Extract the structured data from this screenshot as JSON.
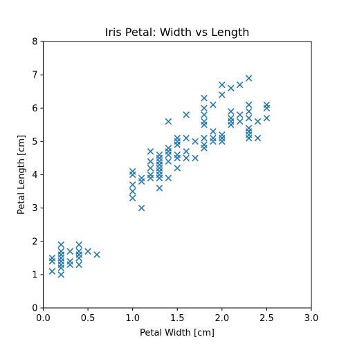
{
  "chart_data": {
    "type": "scatter",
    "title": "Iris Petal: Width vs Length",
    "xlabel": "Petal Width [cm]",
    "ylabel": "Petal Length [cm]",
    "xlim": [
      0.0,
      3.0
    ],
    "ylim": [
      0,
      8
    ],
    "xticks": [
      "0.0",
      "0.5",
      "1.0",
      "1.5",
      "2.0",
      "2.5",
      "3.0"
    ],
    "yticks": [
      "0",
      "1",
      "2",
      "3",
      "4",
      "5",
      "6",
      "7",
      "8"
    ],
    "grid": false,
    "marker": "x",
    "color": "#1f77b4",
    "series": [
      {
        "points": [
          [
            0.1,
            1.5
          ],
          [
            0.1,
            1.4
          ],
          [
            0.1,
            1.1
          ],
          [
            0.2,
            1.9
          ],
          [
            0.2,
            1.7
          ],
          [
            0.2,
            1.6
          ],
          [
            0.2,
            1.5
          ],
          [
            0.2,
            1.4
          ],
          [
            0.2,
            1.3
          ],
          [
            0.2,
            1.2
          ],
          [
            0.2,
            1.0
          ],
          [
            0.3,
            1.7
          ],
          [
            0.3,
            1.4
          ],
          [
            0.3,
            1.3
          ],
          [
            0.4,
            1.9
          ],
          [
            0.4,
            1.7
          ],
          [
            0.4,
            1.6
          ],
          [
            0.4,
            1.5
          ],
          [
            0.4,
            1.3
          ],
          [
            0.5,
            1.7
          ],
          [
            0.6,
            1.6
          ],
          [
            1.0,
            4.1
          ],
          [
            1.0,
            4.0
          ],
          [
            1.0,
            3.7
          ],
          [
            1.0,
            3.5
          ],
          [
            1.0,
            3.3
          ],
          [
            1.1,
            3.9
          ],
          [
            1.1,
            3.8
          ],
          [
            1.1,
            3.0
          ],
          [
            1.2,
            4.7
          ],
          [
            1.2,
            4.4
          ],
          [
            1.2,
            4.2
          ],
          [
            1.2,
            4.0
          ],
          [
            1.2,
            3.9
          ],
          [
            1.3,
            4.6
          ],
          [
            1.3,
            4.5
          ],
          [
            1.3,
            4.4
          ],
          [
            1.3,
            4.3
          ],
          [
            1.3,
            4.2
          ],
          [
            1.3,
            4.1
          ],
          [
            1.3,
            4.0
          ],
          [
            1.3,
            3.9
          ],
          [
            1.3,
            3.6
          ],
          [
            1.4,
            5.6
          ],
          [
            1.4,
            4.8
          ],
          [
            1.4,
            4.7
          ],
          [
            1.4,
            4.6
          ],
          [
            1.4,
            4.4
          ],
          [
            1.4,
            3.9
          ],
          [
            1.5,
            5.1
          ],
          [
            1.5,
            5.0
          ],
          [
            1.5,
            4.9
          ],
          [
            1.5,
            4.6
          ],
          [
            1.5,
            4.5
          ],
          [
            1.5,
            4.2
          ],
          [
            1.6,
            5.8
          ],
          [
            1.6,
            5.1
          ],
          [
            1.6,
            4.7
          ],
          [
            1.6,
            4.5
          ],
          [
            1.7,
            5.0
          ],
          [
            1.7,
            4.5
          ],
          [
            1.8,
            6.3
          ],
          [
            1.8,
            6.0
          ],
          [
            1.8,
            5.8
          ],
          [
            1.8,
            5.6
          ],
          [
            1.8,
            5.5
          ],
          [
            1.8,
            5.1
          ],
          [
            1.8,
            4.9
          ],
          [
            1.8,
            4.8
          ],
          [
            1.9,
            6.1
          ],
          [
            1.9,
            5.3
          ],
          [
            1.9,
            5.1
          ],
          [
            1.9,
            5.0
          ],
          [
            2.0,
            6.7
          ],
          [
            2.0,
            6.4
          ],
          [
            2.0,
            5.2
          ],
          [
            2.0,
            5.1
          ],
          [
            2.0,
            5.0
          ],
          [
            2.1,
            6.6
          ],
          [
            2.1,
            5.9
          ],
          [
            2.1,
            5.7
          ],
          [
            2.1,
            5.6
          ],
          [
            2.1,
            5.5
          ],
          [
            2.2,
            6.7
          ],
          [
            2.2,
            5.8
          ],
          [
            2.2,
            5.6
          ],
          [
            2.3,
            6.9
          ],
          [
            2.3,
            6.1
          ],
          [
            2.3,
            5.9
          ],
          [
            2.3,
            5.7
          ],
          [
            2.3,
            5.4
          ],
          [
            2.3,
            5.3
          ],
          [
            2.3,
            5.2
          ],
          [
            2.3,
            5.1
          ],
          [
            2.4,
            5.6
          ],
          [
            2.4,
            5.1
          ],
          [
            2.5,
            6.1
          ],
          [
            2.5,
            6.0
          ],
          [
            2.5,
            5.7
          ]
        ]
      }
    ]
  }
}
